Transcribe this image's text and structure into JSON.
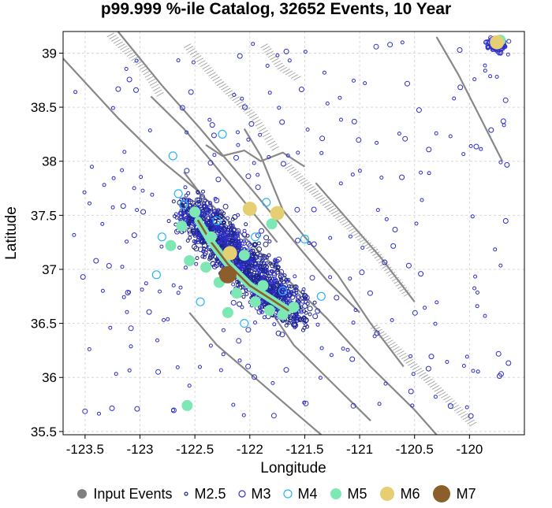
{
  "chart_data": {
    "type": "scatter",
    "title": "p99.999 %-ile Catalog, 32652 Events, 10 Year",
    "xlabel": "Longitude",
    "ylabel": "Latitude",
    "xlim": [
      -123.7,
      -119.5
    ],
    "ylim": [
      35.47,
      39.2
    ],
    "xticks": [
      "-123.5",
      "-123",
      "-122.5",
      "-122",
      "-121.5",
      "-121",
      "-120.5",
      "-120"
    ],
    "yticks": [
      "35.5",
      "36",
      "36.5",
      "37",
      "37.5",
      "38",
      "38.5",
      "39"
    ],
    "grid": true,
    "legend_position": "bottom",
    "legend": [
      {
        "label": "Input Events",
        "kind": "filled",
        "color": "#808080",
        "size": 6
      },
      {
        "label": "M2.5",
        "kind": "ring",
        "color": "#1a237e",
        "size": 2
      },
      {
        "label": "M3",
        "kind": "ring",
        "color": "#3030d0",
        "size": 4
      },
      {
        "label": "M4",
        "kind": "ring",
        "color": "#29b6f6",
        "size": 5
      },
      {
        "label": "M5",
        "kind": "filled",
        "color": "#7de8b4",
        "size": 7
      },
      {
        "label": "M6",
        "kind": "filled",
        "color": "#e5cf72",
        "size": 9
      },
      {
        "label": "M7",
        "kind": "filled",
        "color": "#8b5e2b",
        "size": 11
      }
    ],
    "series": [
      {
        "name": "M7",
        "points": [
          [
            -122.2,
            36.95
          ]
        ]
      },
      {
        "name": "M6",
        "points": [
          [
            -122.18,
            37.15
          ],
          [
            -121.75,
            37.52
          ],
          [
            -122.0,
            37.56
          ],
          [
            -119.75,
            39.1
          ]
        ]
      },
      {
        "name": "M5",
        "points": [
          [
            -122.5,
            37.53
          ],
          [
            -122.62,
            37.4
          ],
          [
            -122.72,
            37.22
          ],
          [
            -122.55,
            37.08
          ],
          [
            -122.4,
            37.02
          ],
          [
            -122.28,
            36.88
          ],
          [
            -122.12,
            36.78
          ],
          [
            -121.95,
            36.7
          ],
          [
            -121.82,
            36.62
          ],
          [
            -121.7,
            36.58
          ],
          [
            -122.05,
            37.13
          ],
          [
            -121.88,
            36.85
          ],
          [
            -122.57,
            35.74
          ],
          [
            -121.8,
            37.42
          ],
          [
            -119.72,
            39.12
          ],
          [
            -122.2,
            36.6
          ],
          [
            -122.35,
            37.3
          ],
          [
            -121.6,
            36.65
          ]
        ]
      },
      {
        "name": "M4",
        "points": [
          [
            -122.6,
            37.6
          ],
          [
            -122.3,
            37.45
          ],
          [
            -121.95,
            37.3
          ],
          [
            -121.5,
            37.28
          ],
          [
            -122.85,
            36.95
          ],
          [
            -122.45,
            36.7
          ],
          [
            -121.7,
            36.8
          ],
          [
            -122.8,
            37.3
          ],
          [
            -121.35,
            36.75
          ],
          [
            -122.25,
            38.25
          ],
          [
            -122.7,
            38.05
          ],
          [
            -122.65,
            37.7
          ],
          [
            -121.85,
            37.62
          ],
          [
            -122.05,
            36.5
          ]
        ]
      }
    ]
  }
}
